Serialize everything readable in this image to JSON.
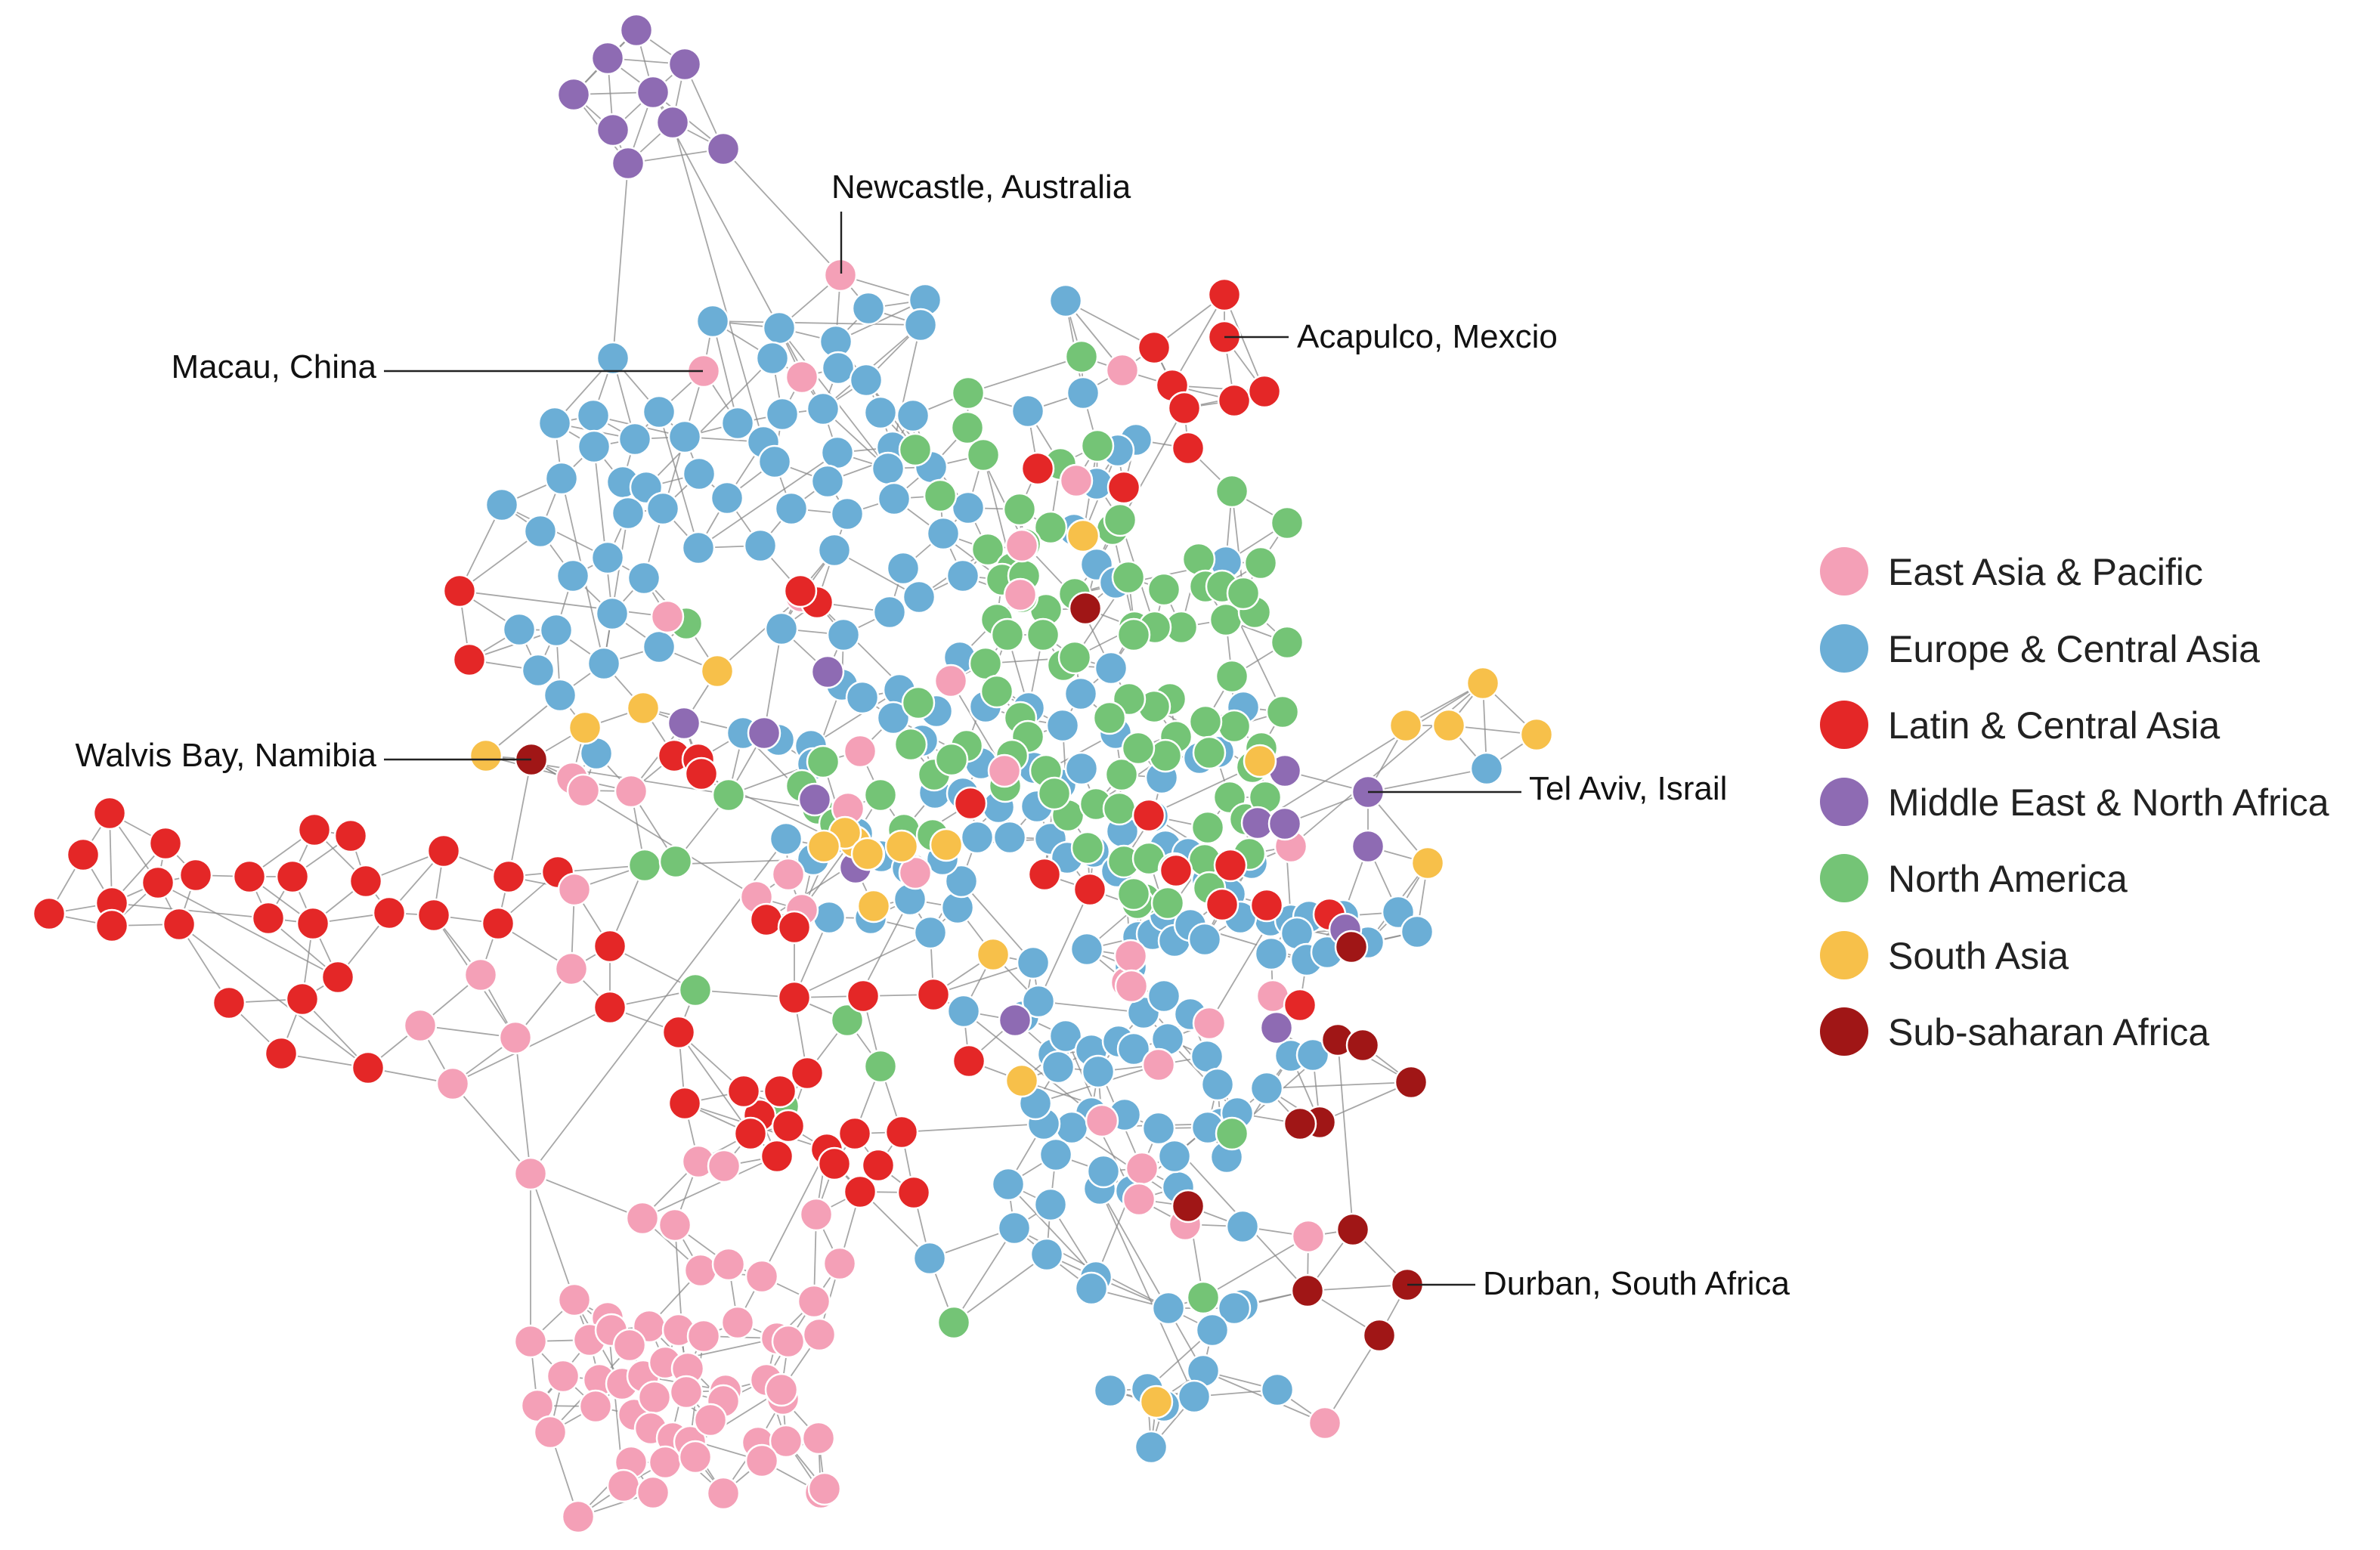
{
  "legend": {
    "items": [
      {
        "label": "East Asia & Pacific",
        "color": "#f4a0b7"
      },
      {
        "label": "Europe & Central Asia",
        "color": "#6baed6"
      },
      {
        "label": "Latin & Central Asia",
        "color": "#e42727"
      },
      {
        "label": "Middle East & North Africa",
        "color": "#8e6bb3"
      },
      {
        "label": "North America",
        "color": "#74c476"
      },
      {
        "label": "South Asia",
        "color": "#f7c04a"
      },
      {
        "label": "Sub-saharan Africa",
        "color": "#a01616"
      }
    ]
  },
  "callouts": [
    {
      "label": "Newcastle, Australia"
    },
    {
      "label": "Macau, China"
    },
    {
      "label": "Acapulco, Mexcio"
    },
    {
      "label": "Walvis Bay, Namibia"
    },
    {
      "label": "Tel Aviv, Israil"
    },
    {
      "label": "Durban, South Africa"
    }
  ],
  "network": {
    "edge_color": "#8a8a8a"
  }
}
